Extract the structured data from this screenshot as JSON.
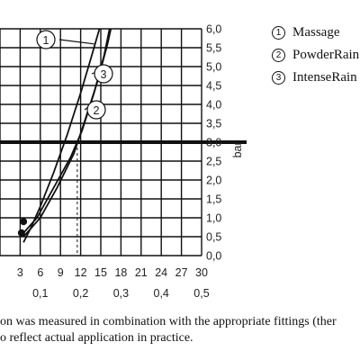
{
  "chart_data": {
    "type": "line",
    "y_axis": {
      "label": "bar",
      "ticks": [
        "0,0",
        "0,5",
        "1,0",
        "1,5",
        "2,0",
        "2,5",
        "3,0",
        "3,5",
        "4,0",
        "4,5",
        "5,0",
        "5,5",
        "6,0"
      ],
      "range": [
        0,
        6
      ]
    },
    "x_axis_primary": {
      "ticks": [
        "3",
        "6",
        "9",
        "12",
        "15",
        "18",
        "21",
        "24",
        "27",
        "30"
      ],
      "range": [
        0,
        30
      ]
    },
    "x_axis_secondary": {
      "ticks": [
        "0,1",
        "0,2",
        "0,3",
        "0,4",
        "0,5"
      ]
    },
    "reference_line_y": 3.0,
    "grid": true,
    "series": [
      {
        "name": "Massage",
        "marker": "1",
        "points": [
          [
            3.5,
            0.35
          ],
          [
            4.5,
            0.7
          ],
          [
            6,
            1.3
          ],
          [
            8,
            2.2
          ],
          [
            10,
            3.2
          ],
          [
            12,
            4.3
          ],
          [
            13.5,
            5.2
          ],
          [
            14.8,
            6.0
          ]
        ]
      },
      {
        "name": "PowderRain",
        "marker": "2",
        "points": [
          [
            3.5,
            0.5
          ],
          [
            6,
            1.0
          ],
          [
            8.5,
            1.8
          ],
          [
            11,
            2.7
          ],
          [
            12.5,
            3.5
          ],
          [
            14.5,
            4.6
          ],
          [
            16,
            5.6
          ],
          [
            16.5,
            6.0
          ]
        ]
      },
      {
        "name": "IntenseRain",
        "marker": "3",
        "points": [
          [
            3.5,
            0.6
          ],
          [
            5.5,
            1.0
          ],
          [
            8,
            1.8
          ],
          [
            10.5,
            2.6
          ],
          [
            12.2,
            3.3
          ],
          [
            14,
            4.3
          ],
          [
            15.5,
            5.3
          ],
          [
            16.3,
            6.0
          ]
        ]
      }
    ],
    "dashed_drops": [
      9.0,
      11.5
    ]
  },
  "legend": [
    {
      "num": "1",
      "label": "Massage"
    },
    {
      "num": "2",
      "label": "PowderRain"
    },
    {
      "num": "3",
      "label": "IntenseRain"
    }
  ],
  "footnote": {
    "line1": "on was measured in combination with the appropriate fittings (ther",
    "line2": "o reflect actual application in practice."
  },
  "colors": {
    "line": "#111111",
    "grid": "#111111",
    "reference": "#111111"
  }
}
